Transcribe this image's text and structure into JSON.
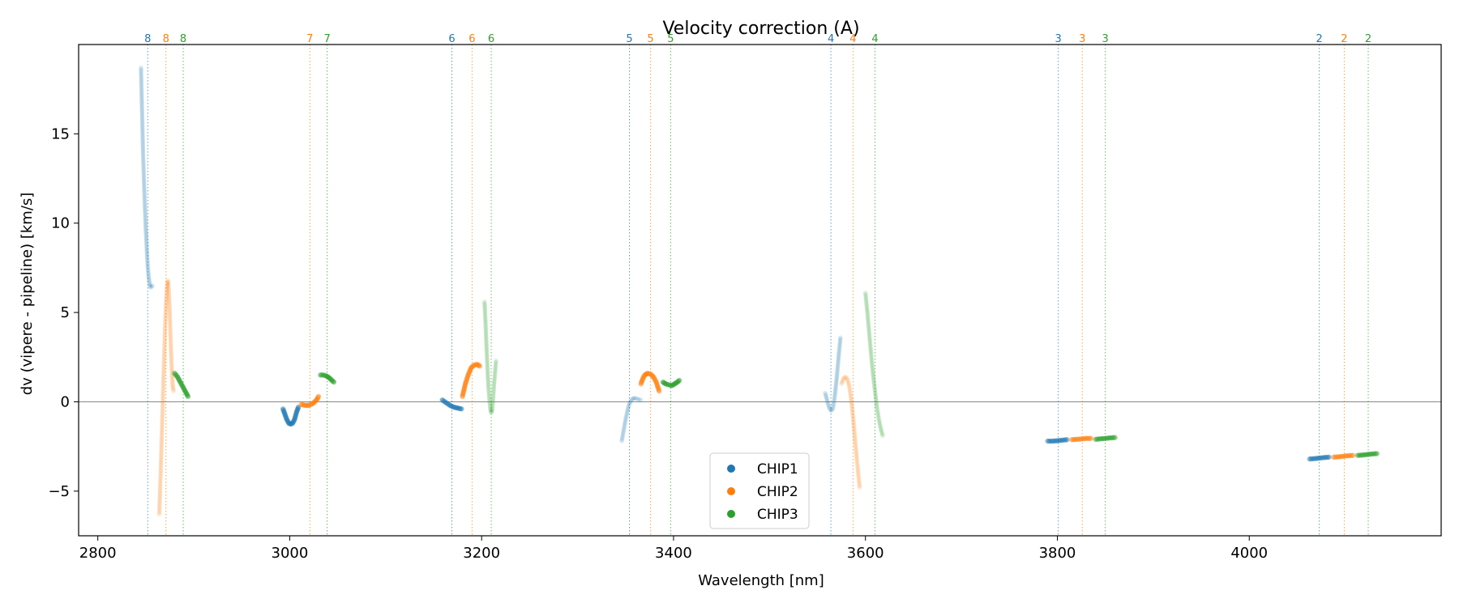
{
  "chart_data": {
    "type": "scatter",
    "title": "Velocity correction (A)",
    "xlabel": "Wavelength [nm]",
    "ylabel": "dv (vipere - pipeline) [km/s]",
    "xlim": [
      2780,
      4200
    ],
    "ylim": [
      -7.5,
      20
    ],
    "xticks": [
      2800,
      3000,
      3200,
      3400,
      3600,
      3800,
      4000
    ],
    "yticks": [
      -5,
      0,
      5,
      10,
      15
    ],
    "reference_line_y": 0,
    "legend": {
      "position": "lower-center",
      "entries": [
        "CHIP1",
        "CHIP2",
        "CHIP3"
      ]
    },
    "colors": {
      "CHIP1": "#1f77b4",
      "CHIP2": "#ff7f0e",
      "CHIP3": "#2ca02c",
      "zero_line": "#888888",
      "axes": "#000000"
    },
    "order_markers": [
      {
        "x": 2852,
        "label": "8",
        "chip": "CHIP1"
      },
      {
        "x": 2871,
        "label": "8",
        "chip": "CHIP2"
      },
      {
        "x": 2889,
        "label": "8",
        "chip": "CHIP3"
      },
      {
        "x": 3021,
        "label": "7",
        "chip": "CHIP2"
      },
      {
        "x": 3039,
        "label": "7",
        "chip": "CHIP3"
      },
      {
        "x": 3169,
        "label": "6",
        "chip": "CHIP1"
      },
      {
        "x": 3190,
        "label": "6",
        "chip": "CHIP2"
      },
      {
        "x": 3210,
        "label": "6",
        "chip": "CHIP3"
      },
      {
        "x": 3354,
        "label": "5",
        "chip": "CHIP1"
      },
      {
        "x": 3376,
        "label": "5",
        "chip": "CHIP2"
      },
      {
        "x": 3397,
        "label": "5",
        "chip": "CHIP3"
      },
      {
        "x": 3564,
        "label": "4",
        "chip": "CHIP1"
      },
      {
        "x": 3587,
        "label": "4",
        "chip": "CHIP2"
      },
      {
        "x": 3610,
        "label": "4",
        "chip": "CHIP3"
      },
      {
        "x": 3801,
        "label": "3",
        "chip": "CHIP1"
      },
      {
        "x": 3826,
        "label": "3",
        "chip": "CHIP2"
      },
      {
        "x": 3850,
        "label": "3",
        "chip": "CHIP3"
      },
      {
        "x": 4073,
        "label": "2",
        "chip": "CHIP1"
      },
      {
        "x": 4099,
        "label": "2",
        "chip": "CHIP2"
      },
      {
        "x": 4124,
        "label": "2",
        "chip": "CHIP3"
      }
    ],
    "segments": [
      {
        "chip": "CHIP1",
        "order": "8",
        "strong": false,
        "points": [
          [
            2845,
            18.7
          ],
          [
            2846,
            16.5
          ],
          [
            2847,
            14.2
          ],
          [
            2848,
            12.5
          ],
          [
            2849,
            11
          ],
          [
            2850,
            9.7
          ],
          [
            2851,
            8.6
          ],
          [
            2852,
            7.6
          ],
          [
            2853,
            7.0
          ],
          [
            2854,
            6.6
          ],
          [
            2855,
            6.4
          ],
          [
            2857,
            6.5
          ]
        ]
      },
      {
        "chip": "CHIP2",
        "order": "8",
        "strong": false,
        "points": [
          [
            2864,
            -6.3
          ],
          [
            2865,
            -4.8
          ],
          [
            2866,
            -3.1
          ],
          [
            2867,
            -1.3
          ],
          [
            2868,
            0.5
          ],
          [
            2869,
            2.3
          ],
          [
            2870,
            4.0
          ],
          [
            2871,
            5.4
          ],
          [
            2872,
            6.4
          ],
          [
            2873,
            6.8
          ],
          [
            2874,
            6.2
          ],
          [
            2875,
            4.9
          ],
          [
            2876,
            3.3
          ],
          [
            2877,
            1.9
          ],
          [
            2878,
            0.9
          ],
          [
            2879,
            0.6
          ]
        ]
      },
      {
        "chip": "CHIP3",
        "order": "8",
        "strong": true,
        "points": [
          [
            2880,
            1.6
          ],
          [
            2883,
            1.4
          ],
          [
            2886,
            1.1
          ],
          [
            2889,
            0.8
          ],
          [
            2892,
            0.5
          ],
          [
            2894,
            0.3
          ]
        ]
      },
      {
        "chip": "CHIP1",
        "order": "7",
        "strong": true,
        "points": [
          [
            2993,
            -0.4
          ],
          [
            2995,
            -0.7
          ],
          [
            2997,
            -1.0
          ],
          [
            2999,
            -1.2
          ],
          [
            3001,
            -1.25
          ],
          [
            3003,
            -1.2
          ],
          [
            3005,
            -1.0
          ],
          [
            3007,
            -0.6
          ],
          [
            3009,
            -0.3
          ]
        ]
      },
      {
        "chip": "CHIP2",
        "order": "7",
        "strong": true,
        "points": [
          [
            3012,
            -0.15
          ],
          [
            3016,
            -0.2
          ],
          [
            3020,
            -0.2
          ],
          [
            3024,
            -0.1
          ],
          [
            3028,
            0.1
          ],
          [
            3030,
            0.3
          ]
        ]
      },
      {
        "chip": "CHIP3",
        "order": "7",
        "strong": true,
        "points": [
          [
            3032,
            1.5
          ],
          [
            3035,
            1.5
          ],
          [
            3038,
            1.45
          ],
          [
            3041,
            1.35
          ],
          [
            3044,
            1.2
          ],
          [
            3046,
            1.1
          ]
        ]
      },
      {
        "chip": "CHIP1",
        "order": "6",
        "strong": true,
        "points": [
          [
            3159,
            0.1
          ],
          [
            3163,
            -0.05
          ],
          [
            3167,
            -0.2
          ],
          [
            3171,
            -0.3
          ],
          [
            3175,
            -0.35
          ],
          [
            3179,
            -0.4
          ]
        ]
      },
      {
        "chip": "CHIP2",
        "order": "6",
        "strong": true,
        "points": [
          [
            3180,
            0.3
          ],
          [
            3183,
            1.0
          ],
          [
            3186,
            1.5
          ],
          [
            3189,
            1.9
          ],
          [
            3192,
            2.05
          ],
          [
            3195,
            2.1
          ],
          [
            3198,
            2.0
          ]
        ]
      },
      {
        "chip": "CHIP3",
        "order": "6",
        "strong": false,
        "points": [
          [
            3203,
            5.6
          ],
          [
            3204,
            4.5
          ],
          [
            3205,
            3.2
          ],
          [
            3206,
            2.0
          ],
          [
            3207,
            0.9
          ],
          [
            3208,
            0.2
          ],
          [
            3209,
            -0.4
          ],
          [
            3210,
            -0.6
          ],
          [
            3211,
            -0.5
          ],
          [
            3212,
            0.2
          ],
          [
            3213,
            1.0
          ],
          [
            3215,
            2.3
          ]
        ]
      },
      {
        "chip": "CHIP1",
        "order": "5",
        "strong": false,
        "points": [
          [
            3346,
            -2.2
          ],
          [
            3348,
            -1.6
          ],
          [
            3350,
            -1.0
          ],
          [
            3352,
            -0.5
          ],
          [
            3354,
            -0.1
          ],
          [
            3356,
            0.1
          ],
          [
            3358,
            0.2
          ],
          [
            3360,
            0.2
          ],
          [
            3363,
            0.15
          ],
          [
            3366,
            0.1
          ]
        ]
      },
      {
        "chip": "CHIP2",
        "order": "5",
        "strong": true,
        "points": [
          [
            3366,
            1.0
          ],
          [
            3368,
            1.3
          ],
          [
            3370,
            1.5
          ],
          [
            3373,
            1.6
          ],
          [
            3376,
            1.55
          ],
          [
            3379,
            1.4
          ],
          [
            3382,
            1.1
          ],
          [
            3385,
            0.6
          ]
        ]
      },
      {
        "chip": "CHIP3",
        "order": "5",
        "strong": true,
        "points": [
          [
            3389,
            1.1
          ],
          [
            3392,
            1.0
          ],
          [
            3395,
            0.95
          ],
          [
            3398,
            0.9
          ],
          [
            3401,
            1.0
          ],
          [
            3404,
            1.1
          ],
          [
            3406,
            1.2
          ]
        ]
      },
      {
        "chip": "CHIP1",
        "order": "4",
        "strong": false,
        "points": [
          [
            3558,
            0.5
          ],
          [
            3560,
            0.1
          ],
          [
            3562,
            -0.3
          ],
          [
            3564,
            -0.5
          ],
          [
            3566,
            -0.4
          ],
          [
            3568,
            0.3
          ],
          [
            3570,
            1.3
          ],
          [
            3572,
            2.5
          ],
          [
            3574,
            3.6
          ]
        ]
      },
      {
        "chip": "CHIP2",
        "order": "4",
        "strong": false,
        "points": [
          [
            3575,
            1.0
          ],
          [
            3577,
            1.3
          ],
          [
            3579,
            1.4
          ],
          [
            3581,
            1.3
          ],
          [
            3583,
            0.9
          ],
          [
            3585,
            0.2
          ],
          [
            3587,
            -0.8
          ],
          [
            3589,
            -2.0
          ],
          [
            3591,
            -3.2
          ],
          [
            3594,
            -4.8
          ]
        ]
      },
      {
        "chip": "CHIP3",
        "order": "4",
        "strong": false,
        "points": [
          [
            3600,
            6.1
          ],
          [
            3602,
            5.0
          ],
          [
            3604,
            3.8
          ],
          [
            3606,
            2.6
          ],
          [
            3608,
            1.5
          ],
          [
            3610,
            0.6
          ],
          [
            3612,
            -0.3
          ],
          [
            3614,
            -1.0
          ],
          [
            3616,
            -1.5
          ],
          [
            3618,
            -1.9
          ]
        ]
      },
      {
        "chip": "CHIP1",
        "order": "3",
        "strong": true,
        "points": [
          [
            3790,
            -2.2
          ],
          [
            3795,
            -2.2
          ],
          [
            3800,
            -2.18
          ],
          [
            3805,
            -2.15
          ],
          [
            3810,
            -2.12
          ]
        ]
      },
      {
        "chip": "CHIP2",
        "order": "3",
        "strong": true,
        "points": [
          [
            3815,
            -2.12
          ],
          [
            3820,
            -2.1
          ],
          [
            3825,
            -2.08
          ],
          [
            3830,
            -2.05
          ],
          [
            3835,
            -2.05
          ]
        ]
      },
      {
        "chip": "CHIP3",
        "order": "3",
        "strong": true,
        "points": [
          [
            3840,
            -2.1
          ],
          [
            3845,
            -2.07
          ],
          [
            3850,
            -2.05
          ],
          [
            3855,
            -2.02
          ],
          [
            3860,
            -2.0
          ]
        ]
      },
      {
        "chip": "CHIP1",
        "order": "2",
        "strong": true,
        "points": [
          [
            4063,
            -3.2
          ],
          [
            4068,
            -3.18
          ],
          [
            4073,
            -3.15
          ],
          [
            4078,
            -3.12
          ],
          [
            4083,
            -3.1
          ]
        ]
      },
      {
        "chip": "CHIP2",
        "order": "2",
        "strong": true,
        "points": [
          [
            4088,
            -3.1
          ],
          [
            4093,
            -3.08
          ],
          [
            4098,
            -3.05
          ],
          [
            4103,
            -3.02
          ],
          [
            4108,
            -3.0
          ]
        ]
      },
      {
        "chip": "CHIP3",
        "order": "2",
        "strong": true,
        "points": [
          [
            4113,
            -3.0
          ],
          [
            4118,
            -2.98
          ],
          [
            4123,
            -2.95
          ],
          [
            4128,
            -2.92
          ],
          [
            4133,
            -2.9
          ]
        ]
      }
    ]
  }
}
